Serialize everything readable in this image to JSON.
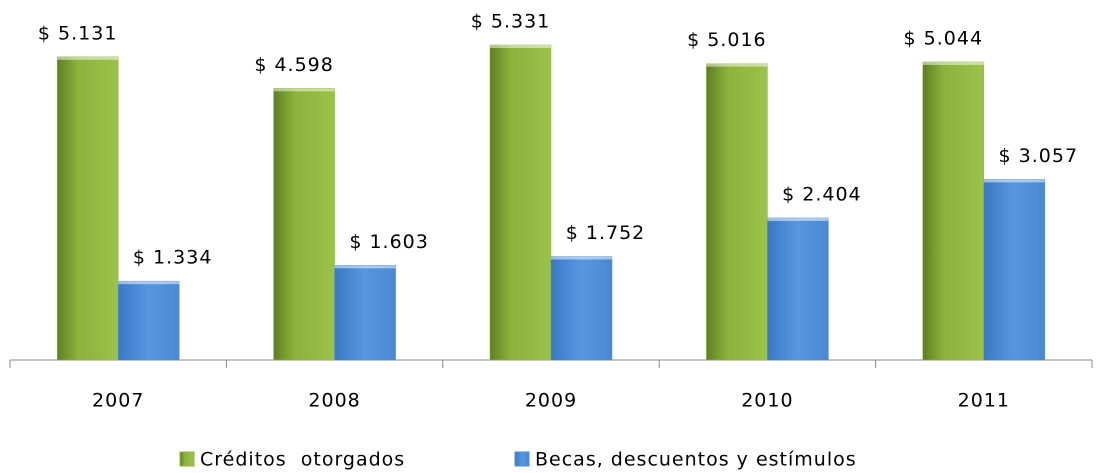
{
  "chart_data": {
    "type": "bar",
    "categories": [
      "2007",
      "2008",
      "2009",
      "2010",
      "2011"
    ],
    "series": [
      {
        "name": "Créditos  otorgados",
        "color": "#8cb43c",
        "values": [
          5131,
          4598,
          5331,
          5016,
          5044
        ],
        "value_labels": [
          "$ 5.131",
          "$ 4.598",
          "$ 5.331",
          "$ 5.016",
          "$ 5.044"
        ]
      },
      {
        "name": "Becas, descuentos y estímulos",
        "color": "#4f8fd6",
        "values": [
          1334,
          1603,
          1752,
          2404,
          3057
        ],
        "value_labels": [
          "$ 1.334",
          "$ 1.603",
          "$ 1.752",
          "$ 2.404",
          "$ 3.057"
        ]
      }
    ]
  }
}
